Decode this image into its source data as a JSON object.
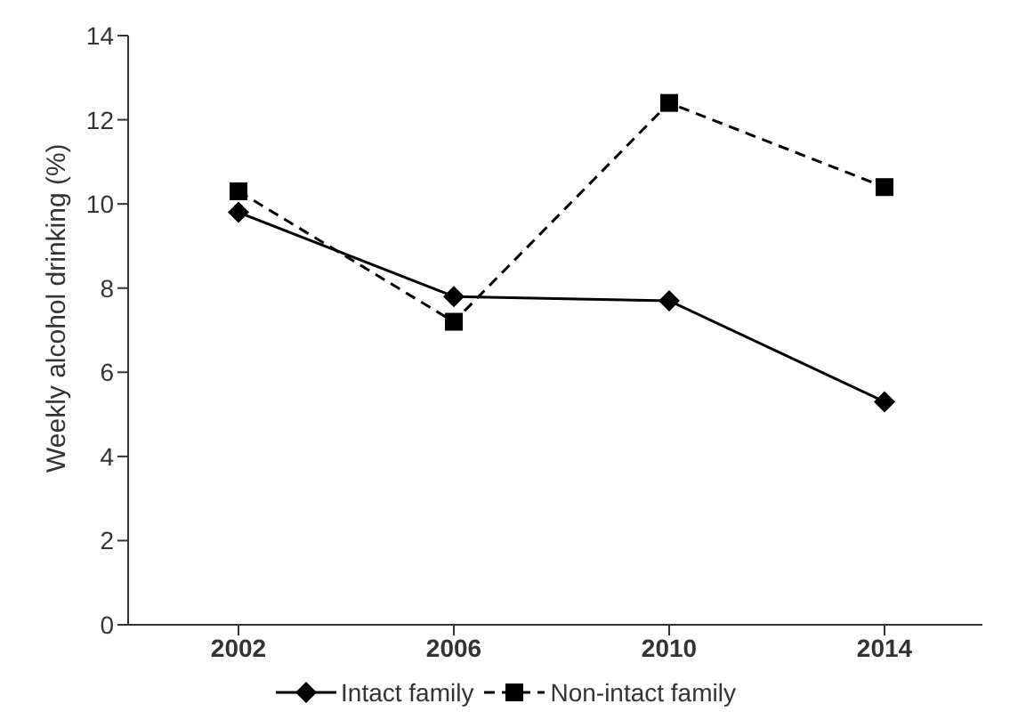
{
  "chart_data": {
    "type": "line",
    "ylabel": "Weekly alcohol drinking (%)",
    "categories": [
      "2002",
      "2006",
      "2010",
      "2014"
    ],
    "series": [
      {
        "name": "Intact family",
        "color": "#000000",
        "values": [
          9.8,
          7.8,
          7.7,
          5.3
        ],
        "marker": "diamond",
        "line_style": "solid"
      },
      {
        "name": "Non-intact family",
        "color": "#000000",
        "values": [
          10.3,
          7.2,
          12.4,
          10.4
        ],
        "marker": "square",
        "line_style": "dashed"
      }
    ],
    "ylim": [
      0,
      14
    ],
    "yticks": [
      0,
      2,
      4,
      6,
      8,
      10,
      12,
      14
    ],
    "grid": false,
    "legend": "bottom"
  }
}
